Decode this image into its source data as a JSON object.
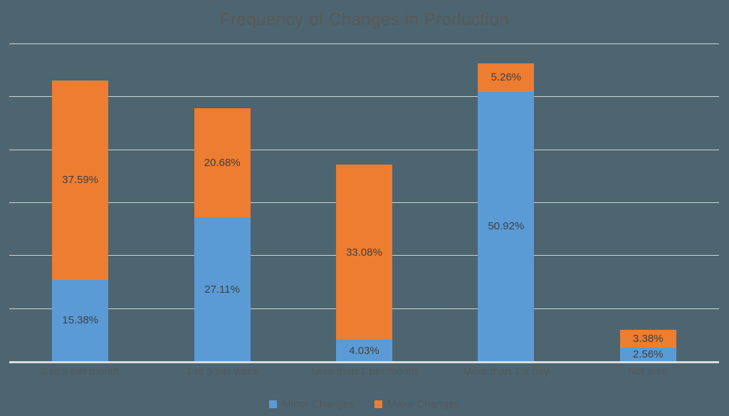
{
  "chart_data": {
    "type": "bar",
    "stacked": true,
    "title": "Frequency of Changes in Production",
    "categories": [
      "1 to 5 per month",
      "1 to 5 per week",
      "Less than 1 per month",
      "More than 1 a day",
      "Not sure"
    ],
    "series": [
      {
        "name": "Minor Changes",
        "color": "#5B9BD5",
        "values": [
          15.38,
          27.11,
          4.03,
          50.92,
          2.56
        ],
        "labels": [
          "15.38%",
          "27.11%",
          "4.03%",
          "50.92%",
          "2.56%"
        ]
      },
      {
        "name": "Major Changes",
        "color": "#ED7D31",
        "values": [
          37.59,
          20.68,
          33.08,
          5.26,
          3.38
        ],
        "labels": [
          "37.59%",
          "20.68%",
          "33.08%",
          "5.26%",
          "3.38%"
        ]
      }
    ],
    "ylim": [
      0,
      60
    ],
    "gridline_interval": 10,
    "grid": true,
    "y_axis_labels_visible": false,
    "legend_position": "bottom",
    "data_label_position": "center",
    "colors": {
      "background": "#4D6570",
      "gridline": "#CfD4D6",
      "axis_line": "#D9DCDD",
      "title_text": "#595959",
      "axis_text": "#535B5E",
      "data_label_text": "#404040",
      "legend_text": "#545B5E"
    }
  }
}
